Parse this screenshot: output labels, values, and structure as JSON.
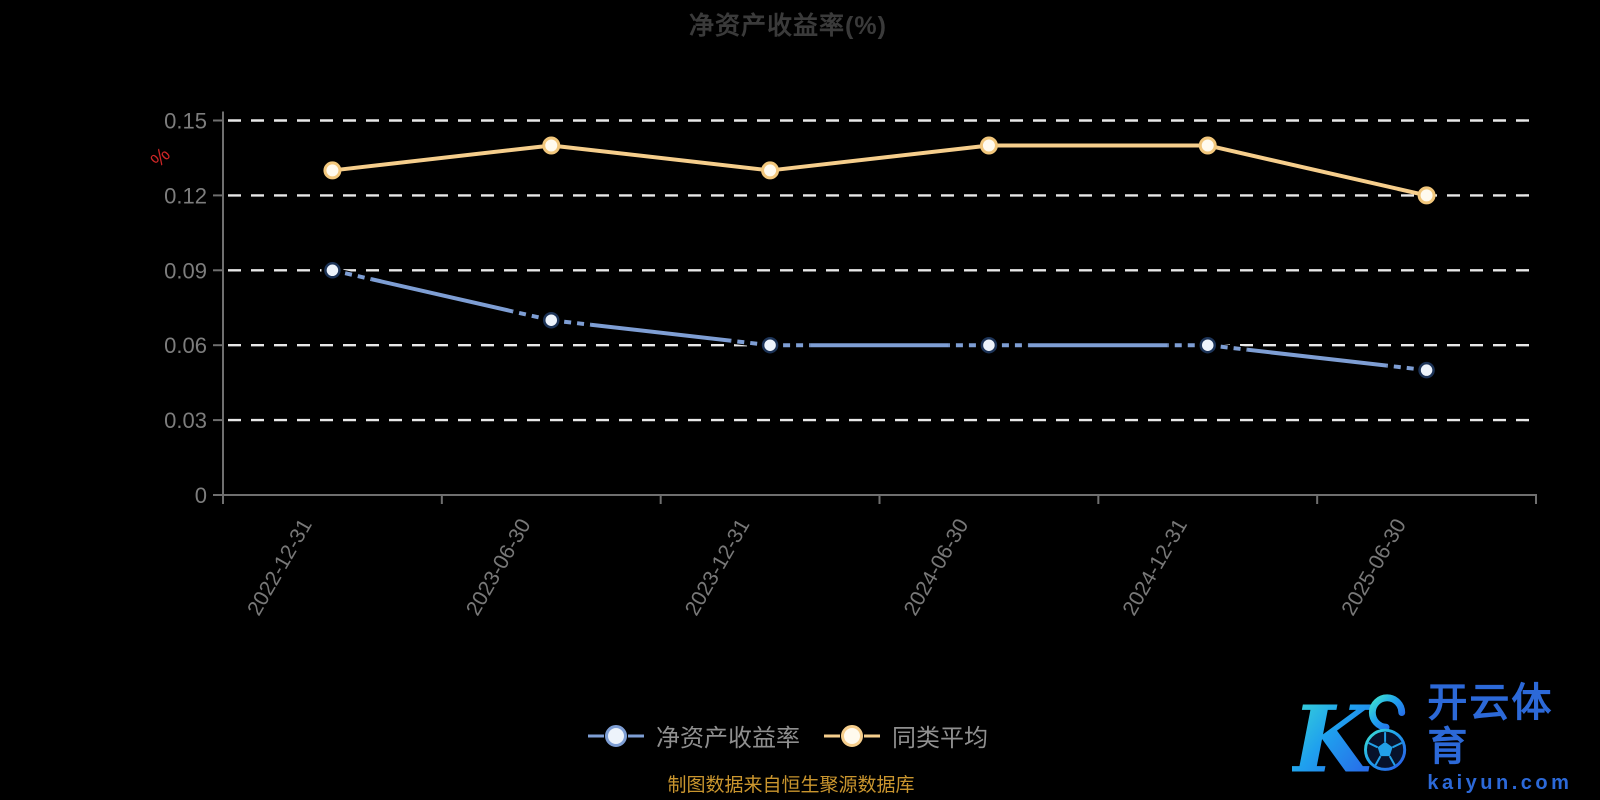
{
  "source_note": "制图数据来自恒生聚源数据库",
  "source_note_color": "#C9952E",
  "watermark": {
    "brand": "开云体育",
    "domain": "kaiyun.com",
    "logo_letter": "K",
    "color": "#2C69D8",
    "gradient": [
      "#3FE3D0",
      "#1FA0EE",
      "#2B57E6"
    ]
  },
  "legend": {
    "items": [
      {
        "label": "净资产收益率"
      },
      {
        "label": "同类平均"
      }
    ]
  },
  "chart_data": {
    "type": "line",
    "title": "净资产收益率(%)",
    "title_color": "#3A3A3A",
    "categories": [
      "2022-12-31",
      "2023-06-30",
      "2023-12-31",
      "2024-06-30",
      "2024-12-31",
      "2025-06-30"
    ],
    "series": [
      {
        "name": "净资产收益率",
        "values": [
          0.09,
          0.07,
          0.06,
          0.06,
          0.06,
          0.05
        ],
        "color": "#7E9ED4",
        "marker_fill": "#EDF3FB",
        "marker_stroke": "#1C3357",
        "dash_near_markers": true
      },
      {
        "name": "同类平均",
        "values": [
          0.13,
          0.14,
          0.13,
          0.14,
          0.14,
          0.12
        ],
        "color": "#F6CE8C",
        "marker_fill": "#FFFAEE",
        "marker_stroke": "#F2C77C",
        "dash_near_markers": false
      }
    ],
    "ylabel": "%",
    "ylabel_color": "#CD2626",
    "ylim": [
      0,
      0.15
    ],
    "yticks": [
      0,
      0.03,
      0.06,
      0.09,
      0.12,
      0.15
    ],
    "grid": "horizontal-dashed",
    "grid_color": "#E8E8E8",
    "axis_color": "#6F6F6F",
    "tick_label_color": "#7D7D7D",
    "legend_position": "bottom-center",
    "background": "#000000"
  }
}
